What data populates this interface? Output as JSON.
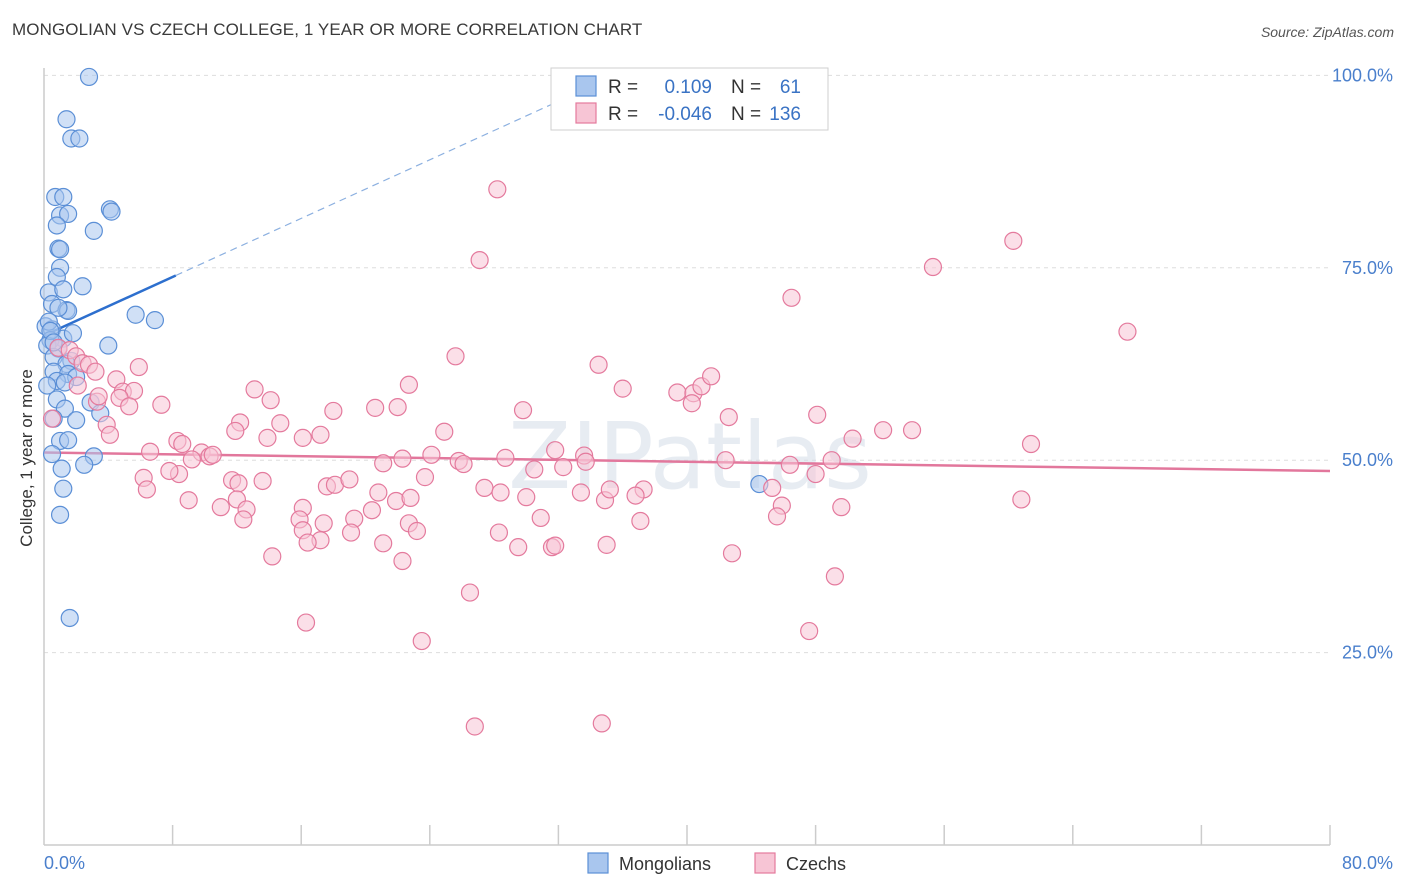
{
  "title": "MONGOLIAN VS CZECH COLLEGE, 1 YEAR OR MORE CORRELATION CHART",
  "source": "Source: ZipAtlas.com",
  "watermark": "ZIPatlas",
  "chart_data": {
    "type": "scatter",
    "xlabel": "",
    "ylabel": "College, 1 year or more",
    "xlim": [
      0,
      80
    ],
    "ylim": [
      0,
      102
    ],
    "x_tick_labels": [
      "0.0%",
      "80.0%"
    ],
    "y_ticks": [
      25,
      50,
      75,
      100
    ],
    "y_tick_labels": [
      "25.0%",
      "50.0%",
      "75.0%",
      "100.0%"
    ],
    "grid": true,
    "legend_placement": "top-center",
    "stats": [
      {
        "series": "Mongolians",
        "r_label": "R =",
        "r": "0.109",
        "n_label": "N =",
        "n": "61"
      },
      {
        "series": "Czechs",
        "r_label": "R =",
        "r": "-0.046",
        "n_label": "N =",
        "n": "136"
      }
    ],
    "series": [
      {
        "name": "Mongolians",
        "color": "#5b8fd6",
        "fill": "#a9c6ee",
        "trend": {
          "x0": 0.0,
          "y0": 66.2,
          "x1": 8.2,
          "y1": 74.0,
          "dash_to_x": 32.5
        },
        "points": [
          [
            2.8,
            99.8
          ],
          [
            1.4,
            94.3
          ],
          [
            1.7,
            91.8
          ],
          [
            2.2,
            91.8
          ],
          [
            0.7,
            84.2
          ],
          [
            1.2,
            84.2
          ],
          [
            4.1,
            82.6
          ],
          [
            4.2,
            82.3
          ],
          [
            1.0,
            81.8
          ],
          [
            1.5,
            82.0
          ],
          [
            0.8,
            80.5
          ],
          [
            3.1,
            79.8
          ],
          [
            0.9,
            77.5
          ],
          [
            1.0,
            77.4
          ],
          [
            1.0,
            75.0
          ],
          [
            0.8,
            73.8
          ],
          [
            2.4,
            72.6
          ],
          [
            0.3,
            71.8
          ],
          [
            1.2,
            72.2
          ],
          [
            0.5,
            70.3
          ],
          [
            1.4,
            69.5
          ],
          [
            1.5,
            69.4
          ],
          [
            0.9,
            69.8
          ],
          [
            5.7,
            68.9
          ],
          [
            6.9,
            68.2
          ],
          [
            0.1,
            67.4
          ],
          [
            0.5,
            67.0
          ],
          [
            1.2,
            65.8
          ],
          [
            1.8,
            66.5
          ],
          [
            0.4,
            65.6
          ],
          [
            0.2,
            64.9
          ],
          [
            4.0,
            64.9
          ],
          [
            0.9,
            64.5
          ],
          [
            0.6,
            63.4
          ],
          [
            1.7,
            62.9
          ],
          [
            1.4,
            62.5
          ],
          [
            0.6,
            61.5
          ],
          [
            1.5,
            61.2
          ],
          [
            0.8,
            60.3
          ],
          [
            2.0,
            60.8
          ],
          [
            1.3,
            60.1
          ],
          [
            0.2,
            59.7
          ],
          [
            0.8,
            57.9
          ],
          [
            2.9,
            57.5
          ],
          [
            1.3,
            56.7
          ],
          [
            3.5,
            56.1
          ],
          [
            0.6,
            55.4
          ],
          [
            1.0,
            52.5
          ],
          [
            1.5,
            52.6
          ],
          [
            0.5,
            50.8
          ],
          [
            3.1,
            50.5
          ],
          [
            2.5,
            49.4
          ],
          [
            1.2,
            46.3
          ],
          [
            1.0,
            42.9
          ],
          [
            1.6,
            29.5
          ],
          [
            44.5,
            46.9
          ],
          [
            0.3,
            68.0
          ],
          [
            0.4,
            66.8
          ],
          [
            0.6,
            65.3
          ],
          [
            2.0,
            55.2
          ],
          [
            1.1,
            48.9
          ]
        ]
      },
      {
        "name": "Czechs",
        "color": "#e47a9d",
        "fill": "#f7c5d5",
        "trend": {
          "x0": 0.0,
          "y0": 51.0,
          "x1": 80.0,
          "y1": 48.6
        },
        "points": [
          [
            28.2,
            85.2
          ],
          [
            60.3,
            78.5
          ],
          [
            27.1,
            76.0
          ],
          [
            55.3,
            75.1
          ],
          [
            46.5,
            71.1
          ],
          [
            67.4,
            66.7
          ],
          [
            25.6,
            63.5
          ],
          [
            0.9,
            64.6
          ],
          [
            1.6,
            64.3
          ],
          [
            2.0,
            63.5
          ],
          [
            2.4,
            62.6
          ],
          [
            2.8,
            62.4
          ],
          [
            34.5,
            62.4
          ],
          [
            4.5,
            60.5
          ],
          [
            4.9,
            58.9
          ],
          [
            5.6,
            59.0
          ],
          [
            4.7,
            58.1
          ],
          [
            13.1,
            59.2
          ],
          [
            22.7,
            59.8
          ],
          [
            36.0,
            59.3
          ],
          [
            39.4,
            58.8
          ],
          [
            40.4,
            58.7
          ],
          [
            40.9,
            59.6
          ],
          [
            41.5,
            60.9
          ],
          [
            14.1,
            57.8
          ],
          [
            5.3,
            57.0
          ],
          [
            18.0,
            56.4
          ],
          [
            20.6,
            56.8
          ],
          [
            22.0,
            56.9
          ],
          [
            29.8,
            56.5
          ],
          [
            40.3,
            57.4
          ],
          [
            42.6,
            55.6
          ],
          [
            48.1,
            55.9
          ],
          [
            0.5,
            55.4
          ],
          [
            3.9,
            54.6
          ],
          [
            12.2,
            54.9
          ],
          [
            14.7,
            54.8
          ],
          [
            17.2,
            53.3
          ],
          [
            11.9,
            53.8
          ],
          [
            24.9,
            53.7
          ],
          [
            31.8,
            51.3
          ],
          [
            33.6,
            50.6
          ],
          [
            52.2,
            53.9
          ],
          [
            54.0,
            53.9
          ],
          [
            61.4,
            52.1
          ],
          [
            3.3,
            57.6
          ],
          [
            4.1,
            53.3
          ],
          [
            8.3,
            52.5
          ],
          [
            8.6,
            52.1
          ],
          [
            6.6,
            51.1
          ],
          [
            9.8,
            51.0
          ],
          [
            10.3,
            50.5
          ],
          [
            10.5,
            50.7
          ],
          [
            13.9,
            52.9
          ],
          [
            16.1,
            52.9
          ],
          [
            21.1,
            49.6
          ],
          [
            22.3,
            50.2
          ],
          [
            24.1,
            50.7
          ],
          [
            25.8,
            49.9
          ],
          [
            26.1,
            49.5
          ],
          [
            28.7,
            50.3
          ],
          [
            30.5,
            48.8
          ],
          [
            32.3,
            49.1
          ],
          [
            33.7,
            49.8
          ],
          [
            42.4,
            50.0
          ],
          [
            46.4,
            49.4
          ],
          [
            48.0,
            48.2
          ],
          [
            49.0,
            50.0
          ],
          [
            8.4,
            48.2
          ],
          [
            7.8,
            48.6
          ],
          [
            6.2,
            47.7
          ],
          [
            6.4,
            46.2
          ],
          [
            11.7,
            47.4
          ],
          [
            12.1,
            47.0
          ],
          [
            13.6,
            47.3
          ],
          [
            17.6,
            46.6
          ],
          [
            18.1,
            46.8
          ],
          [
            19.0,
            47.5
          ],
          [
            20.8,
            45.8
          ],
          [
            21.9,
            44.7
          ],
          [
            23.7,
            47.8
          ],
          [
            27.4,
            46.4
          ],
          [
            28.4,
            45.8
          ],
          [
            30.0,
            45.2
          ],
          [
            33.4,
            45.8
          ],
          [
            37.3,
            46.2
          ],
          [
            34.9,
            44.8
          ],
          [
            35.2,
            46.2
          ],
          [
            45.3,
            46.4
          ],
          [
            49.6,
            43.9
          ],
          [
            60.8,
            44.9
          ],
          [
            9.0,
            44.8
          ],
          [
            11.0,
            43.9
          ],
          [
            12.0,
            44.9
          ],
          [
            12.6,
            43.6
          ],
          [
            16.1,
            43.8
          ],
          [
            15.9,
            42.3
          ],
          [
            19.3,
            42.4
          ],
          [
            20.4,
            43.5
          ],
          [
            22.7,
            41.8
          ],
          [
            45.9,
            44.1
          ],
          [
            45.6,
            42.7
          ],
          [
            12.4,
            42.3
          ],
          [
            17.4,
            41.8
          ],
          [
            16.1,
            40.9
          ],
          [
            17.2,
            39.6
          ],
          [
            16.4,
            39.3
          ],
          [
            19.1,
            40.6
          ],
          [
            21.1,
            39.2
          ],
          [
            23.2,
            40.8
          ],
          [
            28.3,
            40.6
          ],
          [
            29.5,
            38.7
          ],
          [
            31.6,
            38.7
          ],
          [
            31.8,
            38.9
          ],
          [
            35.0,
            39.0
          ],
          [
            37.1,
            42.1
          ],
          [
            14.2,
            37.5
          ],
          [
            22.3,
            36.9
          ],
          [
            42.8,
            37.9
          ],
          [
            49.2,
            34.9
          ],
          [
            26.5,
            32.8
          ],
          [
            16.3,
            28.9
          ],
          [
            23.5,
            26.5
          ],
          [
            47.6,
            27.8
          ],
          [
            26.8,
            15.4
          ],
          [
            34.7,
            15.8
          ],
          [
            5.9,
            62.1
          ],
          [
            7.3,
            57.2
          ],
          [
            3.4,
            58.3
          ],
          [
            9.2,
            50.1
          ],
          [
            3.2,
            61.5
          ],
          [
            2.1,
            59.7
          ],
          [
            36.8,
            45.4
          ],
          [
            22.8,
            45.1
          ],
          [
            30.9,
            42.5
          ],
          [
            50.3,
            52.8
          ]
        ]
      }
    ]
  }
}
